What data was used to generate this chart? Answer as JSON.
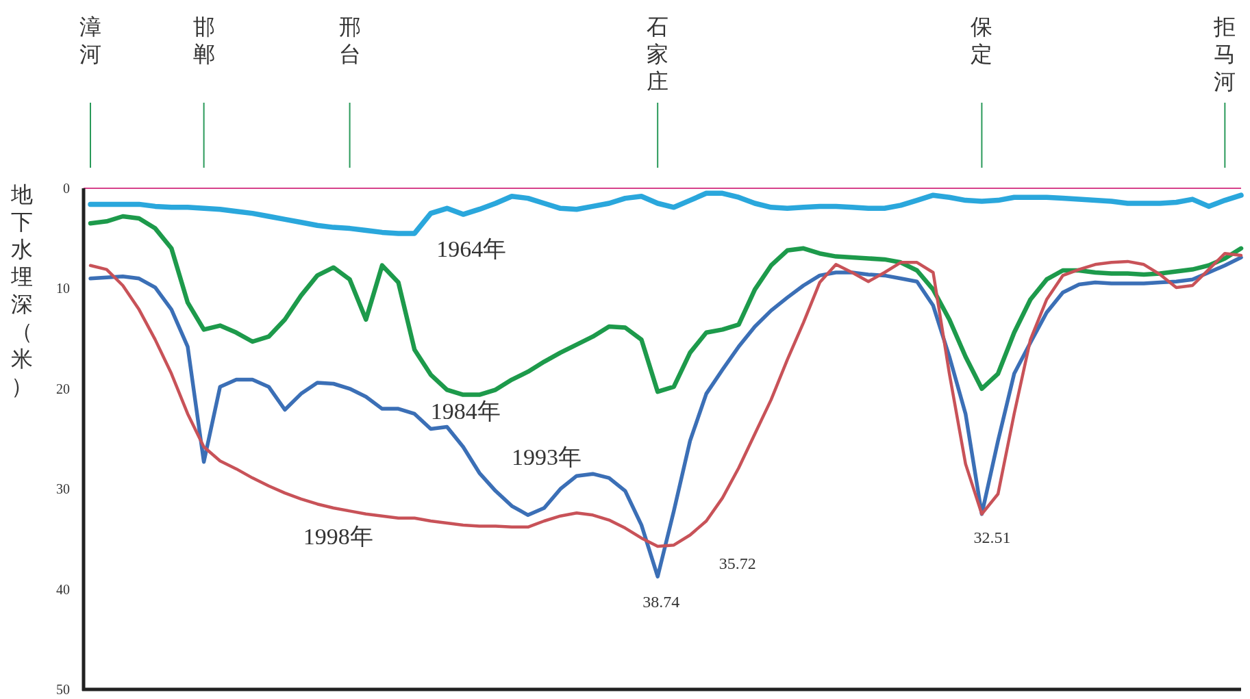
{
  "chart_data": {
    "type": "line",
    "ylabel": "地下水埋深（米）",
    "categories": [
      "漳河",
      null,
      null,
      null,
      null,
      null,
      null,
      "邯郸",
      null,
      null,
      null,
      null,
      null,
      null,
      null,
      null,
      "邢台",
      null,
      null,
      null,
      null,
      null,
      null,
      null,
      null,
      null,
      null,
      null,
      null,
      null,
      null,
      null,
      null,
      null,
      null,
      "石家庄",
      null,
      null,
      null,
      null,
      null,
      null,
      null,
      null,
      null,
      null,
      null,
      null,
      null,
      null,
      null,
      null,
      null,
      null,
      null,
      "保定",
      null,
      null,
      null,
      null,
      null,
      null,
      null,
      null,
      null,
      null,
      null,
      null,
      null,
      null,
      "拒马河",
      null
    ],
    "ylim": [
      50,
      0
    ],
    "yticks": [
      0,
      10,
      20,
      30,
      40,
      50
    ],
    "series": [
      {
        "name": "1964年",
        "color": "#2aa7dc",
        "values": [
          1.6,
          1.6,
          1.6,
          1.6,
          1.8,
          1.9,
          1.9,
          2.0,
          2.1,
          2.3,
          2.5,
          2.8,
          3.1,
          3.4,
          3.7,
          3.9,
          4.0,
          4.2,
          4.4,
          4.5,
          4.5,
          2.5,
          2.0,
          2.6,
          2.1,
          1.5,
          0.8,
          1.0,
          1.5,
          2.0,
          2.1,
          1.8,
          1.5,
          1.0,
          0.8,
          1.5,
          1.9,
          1.2,
          0.5,
          0.5,
          0.9,
          1.5,
          1.9,
          2.0,
          1.9,
          1.8,
          1.8,
          1.9,
          2.0,
          2.0,
          1.7,
          1.2,
          0.7,
          0.9,
          1.2,
          1.3,
          1.2,
          0.9,
          0.9,
          0.9,
          1.0,
          1.1,
          1.2,
          1.3,
          1.5,
          1.5,
          1.5,
          1.4,
          1.1,
          1.8,
          1.2,
          0.7
        ]
      },
      {
        "name": "1984年",
        "color": "#1d9a4b",
        "values": [
          3.5,
          3.3,
          2.8,
          3.0,
          4.0,
          6.0,
          11.4,
          14.1,
          13.7,
          14.4,
          15.3,
          14.8,
          13.1,
          10.7,
          8.7,
          7.9,
          9.1,
          13.1,
          7.7,
          9.4,
          16.1,
          18.6,
          20.1,
          20.6,
          20.6,
          20.1,
          19.1,
          18.3,
          17.3,
          16.4,
          15.6,
          14.8,
          13.8,
          13.9,
          15.1,
          20.3,
          19.8,
          16.4,
          14.4,
          14.1,
          13.6,
          10.1,
          7.7,
          6.2,
          6.0,
          6.5,
          6.8,
          6.9,
          7.0,
          7.1,
          7.4,
          8.2,
          10.1,
          13.1,
          16.8,
          20.0,
          18.5,
          14.4,
          11.1,
          9.1,
          8.2,
          8.2,
          8.4,
          8.5,
          8.5,
          8.6,
          8.5,
          8.3,
          8.1,
          7.7,
          7.0,
          6.0
        ]
      },
      {
        "name": "1993年",
        "color": "#3b6fb6",
        "values": [
          9.0,
          8.9,
          8.8,
          9.0,
          9.9,
          12.1,
          15.8,
          27.3,
          19.8,
          19.1,
          19.1,
          19.8,
          22.1,
          20.5,
          19.4,
          19.5,
          20.0,
          20.8,
          22.0,
          22.0,
          22.5,
          24.0,
          23.8,
          25.8,
          28.4,
          30.2,
          31.7,
          32.6,
          31.9,
          30.0,
          28.7,
          28.5,
          28.9,
          30.2,
          33.6,
          38.74,
          32.2,
          25.2,
          20.5,
          18.1,
          15.8,
          13.8,
          12.2,
          10.9,
          9.7,
          8.7,
          8.4,
          8.4,
          8.6,
          8.7,
          9.0,
          9.3,
          11.7,
          16.8,
          22.5,
          32.51,
          25.2,
          18.5,
          15.4,
          12.4,
          10.4,
          9.6,
          9.4,
          9.5,
          9.5,
          9.5,
          9.4,
          9.3,
          9.1,
          8.4,
          7.7,
          6.9
        ]
      },
      {
        "name": "1998年",
        "color": "#c85258",
        "values": [
          7.7,
          8.1,
          9.7,
          12.1,
          15.1,
          18.5,
          22.5,
          25.8,
          27.2,
          28.0,
          28.9,
          29.7,
          30.4,
          31.0,
          31.5,
          31.9,
          32.2,
          32.5,
          32.7,
          32.9,
          32.9,
          33.2,
          33.4,
          33.6,
          33.7,
          33.7,
          33.8,
          33.8,
          33.2,
          32.7,
          32.4,
          32.6,
          33.1,
          33.9,
          34.9,
          35.72,
          35.6,
          34.6,
          33.2,
          30.9,
          27.9,
          24.5,
          21.1,
          17.1,
          13.4,
          9.4,
          7.6,
          8.4,
          9.3,
          8.4,
          7.4,
          7.4,
          8.4,
          18.5,
          27.5,
          32.51,
          30.5,
          22.5,
          15.1,
          11.1,
          8.7,
          8.1,
          7.6,
          7.4,
          7.3,
          7.6,
          8.6,
          9.9,
          9.7,
          8.1,
          6.5,
          6.7
        ]
      }
    ],
    "ref_lines": [
      {
        "axis": "y",
        "value": 0,
        "color": "#d6428a"
      }
    ],
    "annotations": [
      {
        "text": "38.74",
        "x": "石家庄",
        "y": 38.74
      },
      "35.72",
      {
        "text": "32.51",
        "x": "保定",
        "y": 32.51
      }
    ]
  }
}
